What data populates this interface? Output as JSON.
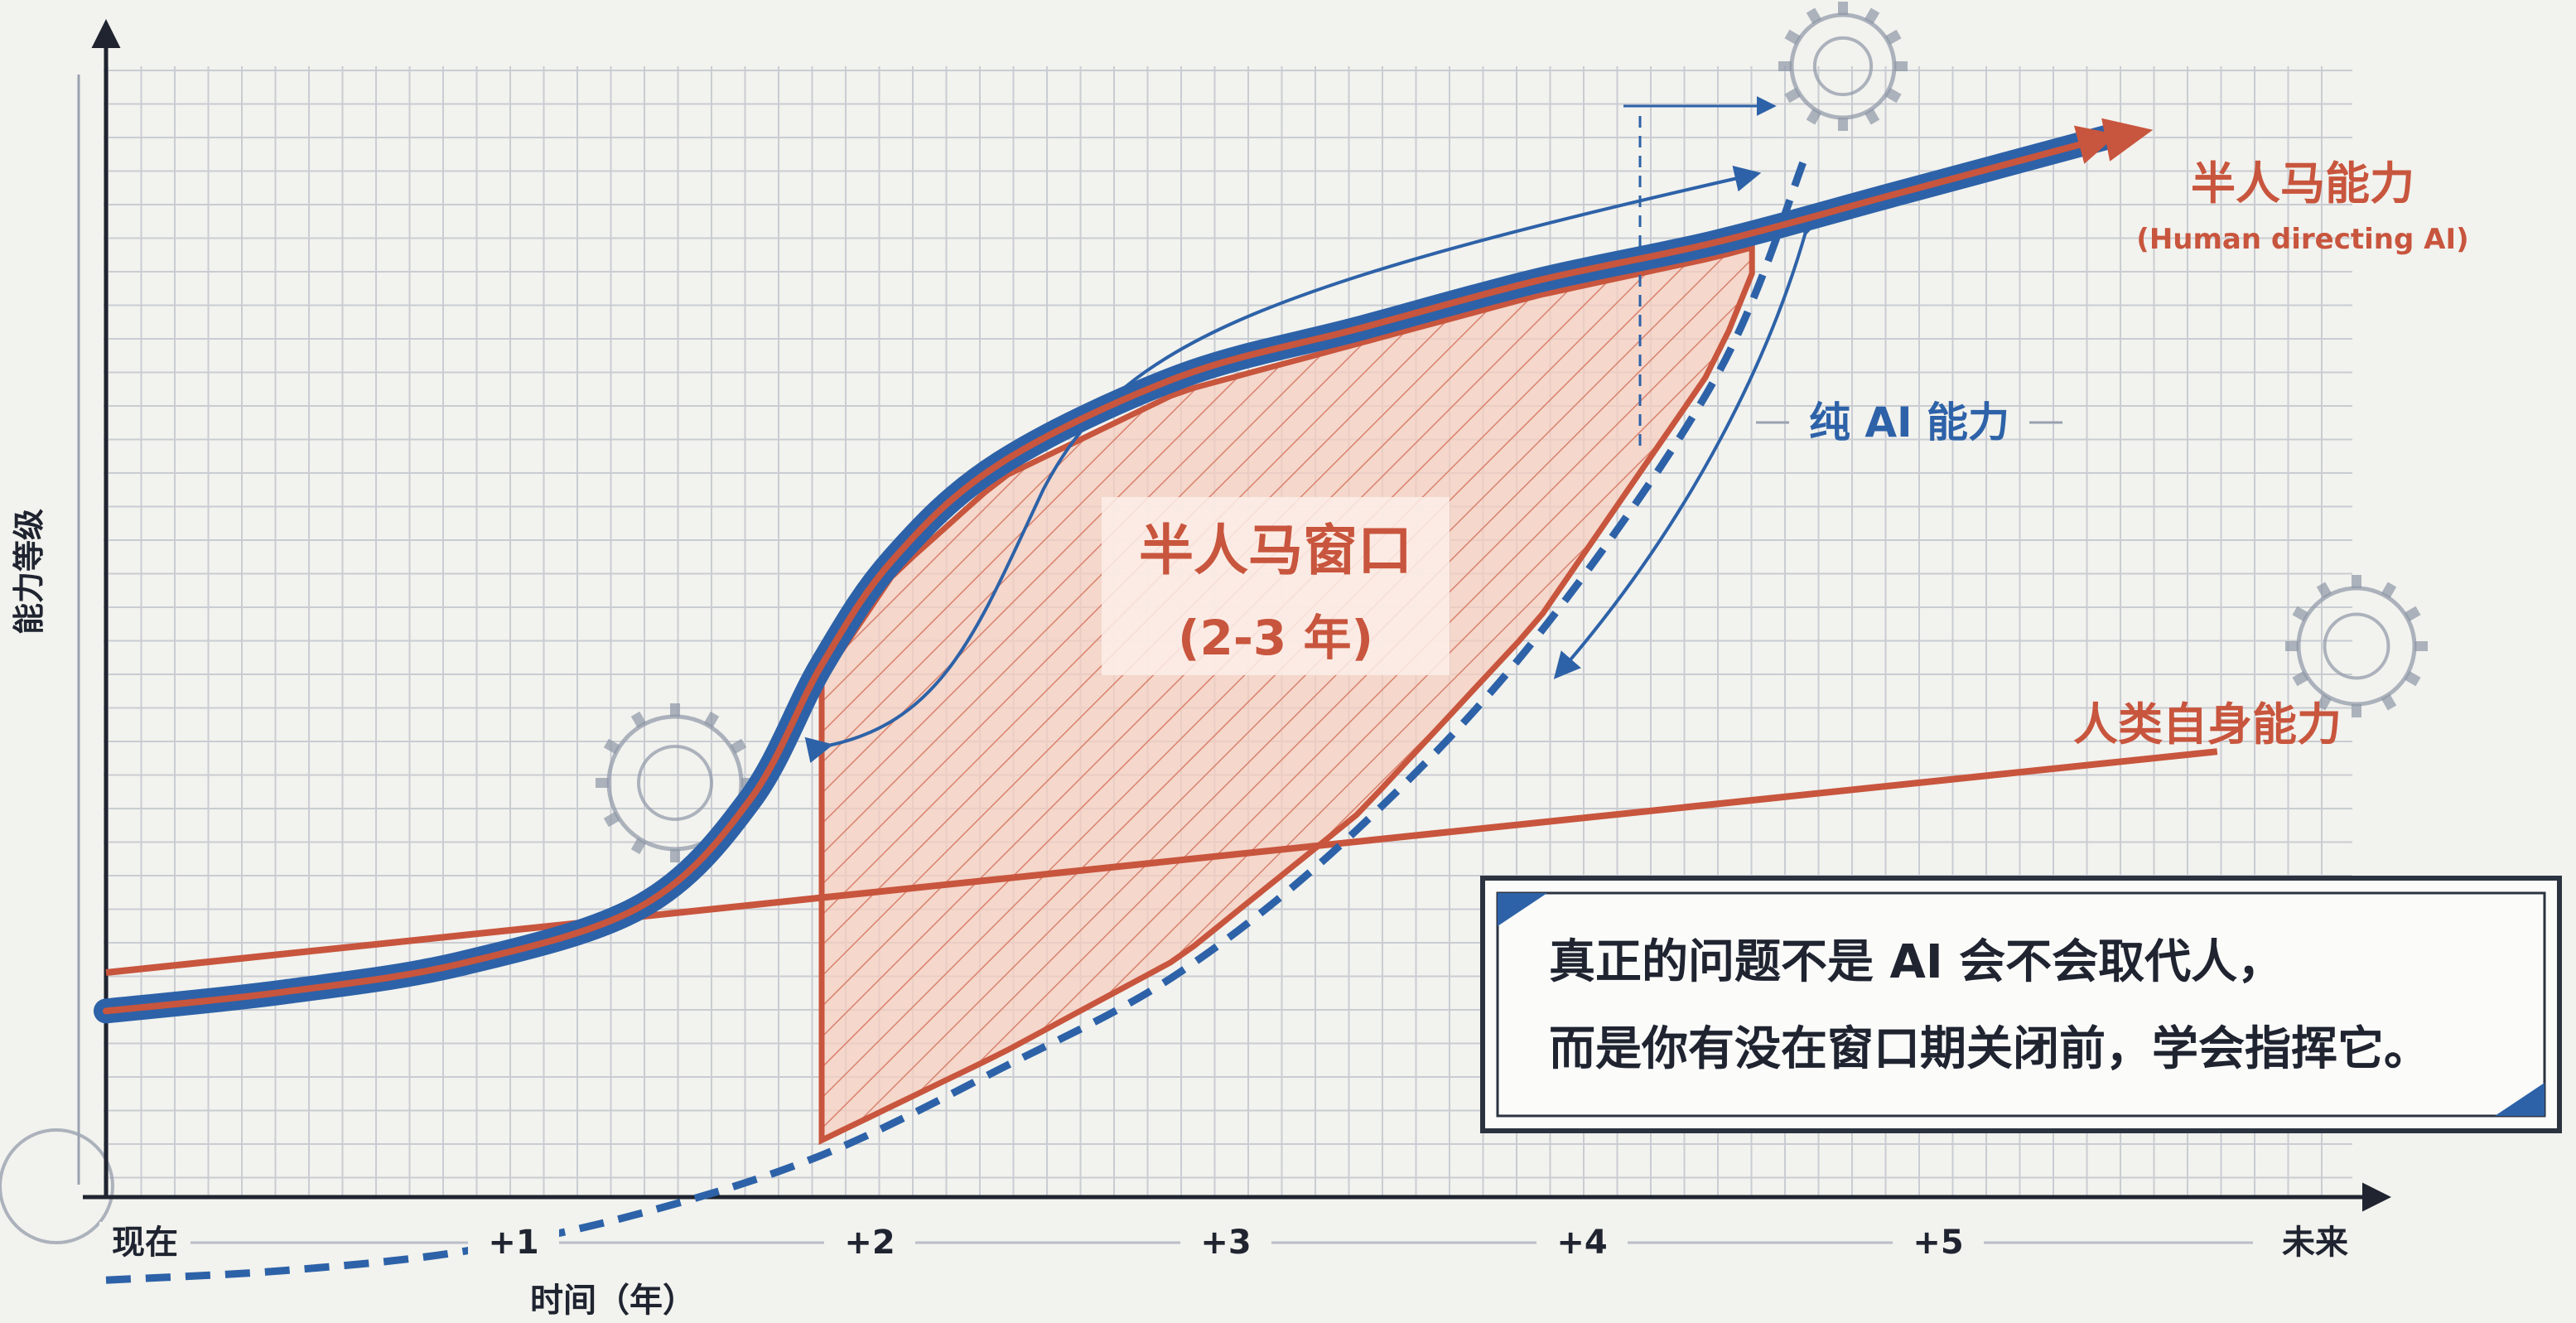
{
  "chart_data": {
    "type": "line",
    "xlabel": "时间（年）",
    "ylabel": "能力等级",
    "xlim": [
      0,
      6
    ],
    "x_ticks": [
      "现在",
      "+1",
      "+2",
      "+3",
      "+4",
      "+5",
      "未来"
    ],
    "grid": true,
    "series": [
      {
        "name": "半人马能力",
        "name_sub": "(Human directing AI)",
        "style": "thick solid blue with red core line",
        "color": "#2d62a8",
        "x": [
          0,
          0.5,
          1,
          1.5,
          1.8,
          2,
          2.2,
          2.5,
          3,
          3.5,
          4,
          4.5,
          5,
          5.6
        ],
        "y": [
          0.06,
          0.08,
          0.11,
          0.17,
          0.28,
          0.42,
          0.53,
          0.63,
          0.72,
          0.77,
          0.82,
          0.86,
          0.91,
          0.97
        ]
      },
      {
        "name": "纯 AI 能力",
        "style": "dashed",
        "color": "#2d62a8",
        "x": [
          0,
          0.5,
          1,
          1.5,
          2,
          2.5,
          3,
          3.5,
          4,
          4.5,
          4.75
        ],
        "y": [
          -0.22,
          -0.21,
          -0.19,
          -0.15,
          -0.09,
          0.0,
          0.1,
          0.25,
          0.45,
          0.72,
          0.95
        ]
      },
      {
        "name": "人类自身能力",
        "style": "solid",
        "color": "#c8553d",
        "x": [
          0,
          5.9
        ],
        "y": [
          0.1,
          0.33
        ]
      }
    ],
    "annotations": [
      {
        "text": "半人马窗口",
        "sub": "(2-3 年)",
        "region": "shaded area between 半人马能力 and 纯 AI 能力 starting at +2"
      }
    ],
    "callout": {
      "line1": "真正的问题不是 AI 会不会取代人，",
      "line2": "而是你有没在窗口期关闭前，学会指挥它。"
    }
  },
  "colors": {
    "background": "#f2f2ee",
    "grid": "#c9ccd2",
    "blue": "#2d62a8",
    "red": "#c8553d",
    "window_fill": "#f3c4b5",
    "text": "#1f2430"
  }
}
